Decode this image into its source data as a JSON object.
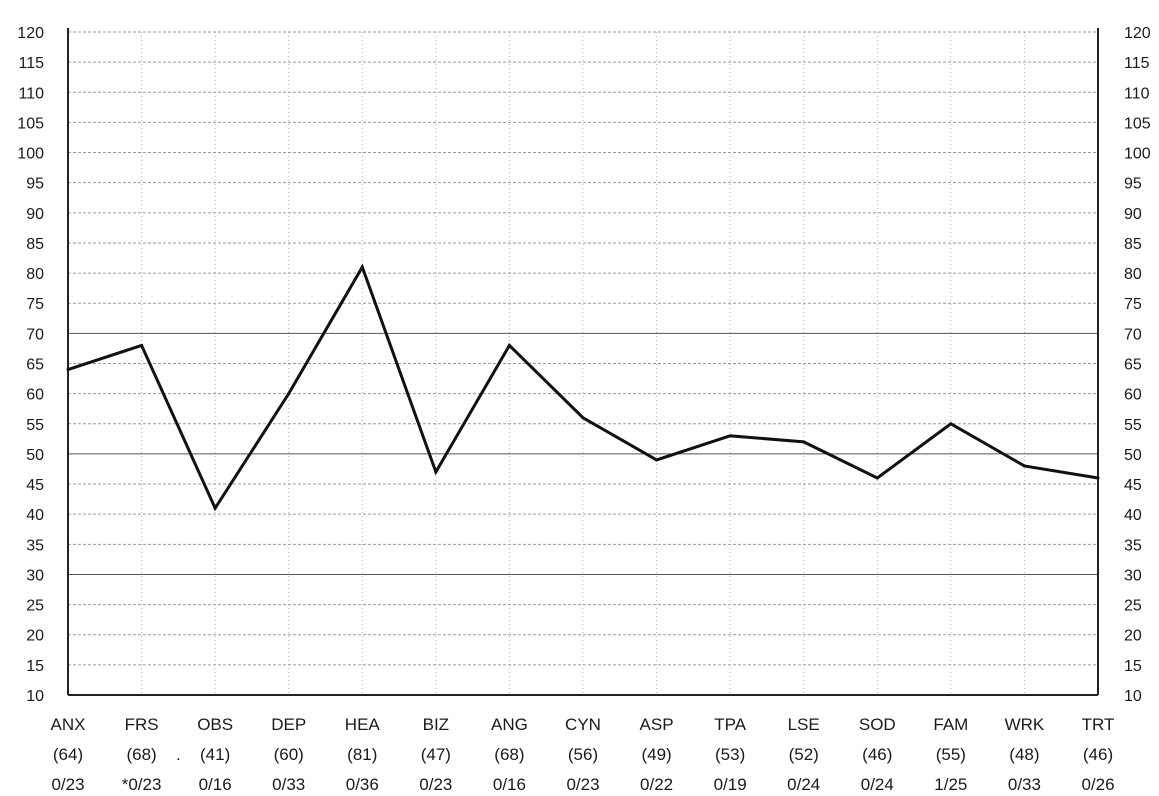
{
  "chart_data": {
    "type": "line",
    "categories": [
      "ANX",
      "FRS",
      "OBS",
      "DEP",
      "HEA",
      "BIZ",
      "ANG",
      "CYN",
      "ASP",
      "TPA",
      "LSE",
      "SOD",
      "FAM",
      "WRK",
      "TRT"
    ],
    "values": [
      64,
      68,
      41,
      60,
      81,
      47,
      68,
      56,
      49,
      53,
      52,
      46,
      55,
      48,
      46
    ],
    "score_labels": [
      "(64)",
      "(68)",
      "(41)",
      "(60)",
      "(81)",
      "(47)",
      "(68)",
      "(56)",
      "(49)",
      "(53)",
      "(52)",
      "(46)",
      "(55)",
      "(48)",
      "(46)"
    ],
    "item_counts": [
      "0/23",
      "*0/23",
      "0/16",
      "0/33",
      "0/36",
      "0/23",
      "0/16",
      "0/23",
      "0/22",
      "0/19",
      "0/24",
      "0/24",
      "1/25",
      "0/33",
      "0/26"
    ],
    "stray_mark": ".",
    "ylim": [
      10,
      120
    ],
    "ytick_step": 5,
    "yticks": [
      "10",
      "15",
      "20",
      "25",
      "30",
      "35",
      "40",
      "45",
      "50",
      "55",
      "60",
      "65",
      "70",
      "75",
      "80",
      "85",
      "90",
      "95",
      "100",
      "105",
      "110",
      "115",
      "120"
    ],
    "reference_lines": [
      30,
      50,
      70
    ],
    "grid": true,
    "title": "",
    "xlabel": "",
    "ylabel": "",
    "line_color": "#111111"
  }
}
